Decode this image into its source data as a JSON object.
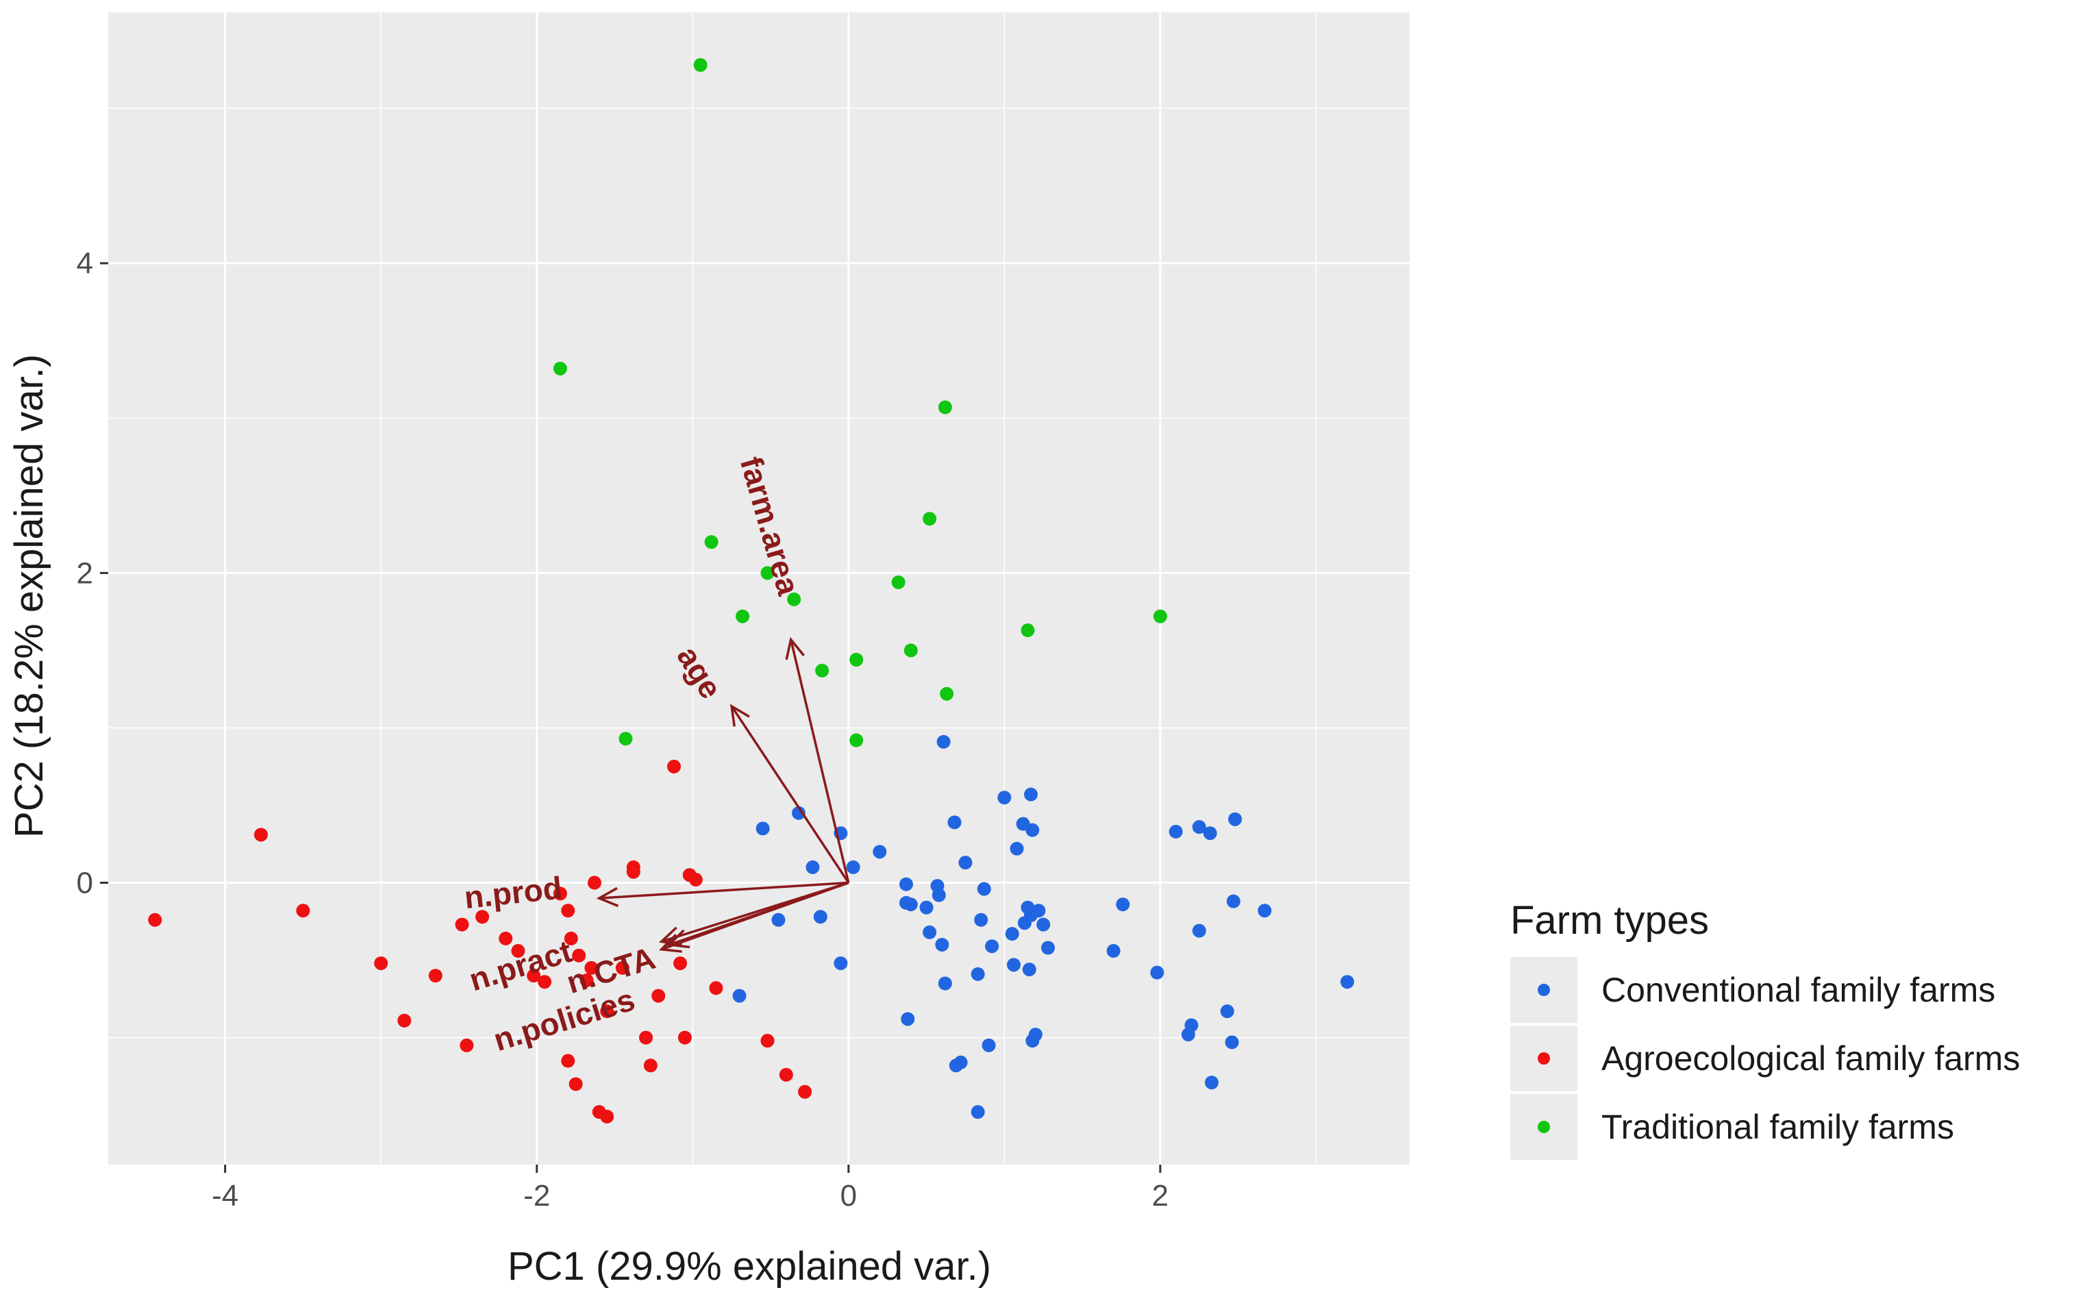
{
  "chart_data": {
    "type": "scatter",
    "xlabel": "PC1 (29.9% explained var.)",
    "ylabel": "PC2 (18.2% explained var.)",
    "xlim": [
      -4.75,
      3.6
    ],
    "ylim": [
      -1.82,
      5.62
    ],
    "x_ticks": [
      -4,
      -2,
      0,
      2
    ],
    "y_ticks": [
      0,
      2,
      4
    ],
    "grid": true,
    "legend": {
      "title": "Farm types",
      "position": "right",
      "entries": [
        "Conventional family farms",
        "Agroecological family farms",
        "Traditional family farms"
      ]
    },
    "colors": {
      "Conventional family farms": "#2166e0",
      "Agroecological family farms": "#ee1111",
      "Traditional family farms": "#11c611",
      "vectors": "#8b1a1a",
      "panel": "#ebebeb",
      "grid": "#ffffff"
    },
    "series": [
      {
        "name": "Conventional family farms",
        "points": [
          [
            -0.55,
            0.35
          ],
          [
            -0.32,
            0.45
          ],
          [
            -0.05,
            0.32
          ],
          [
            0.2,
            0.2
          ],
          [
            0.03,
            0.1
          ],
          [
            -0.23,
            0.1
          ],
          [
            -0.45,
            -0.24
          ],
          [
            -0.18,
            -0.22
          ],
          [
            -0.05,
            -0.52
          ],
          [
            -0.7,
            -0.73
          ],
          [
            0.37,
            -0.01
          ],
          [
            0.37,
            -0.13
          ],
          [
            0.4,
            -0.14
          ],
          [
            0.57,
            -0.02
          ],
          [
            0.58,
            -0.08
          ],
          [
            0.5,
            -0.16
          ],
          [
            0.52,
            -0.32
          ],
          [
            0.6,
            -0.4
          ],
          [
            0.38,
            -0.88
          ],
          [
            0.61,
            0.91
          ],
          [
            0.68,
            0.39
          ],
          [
            0.75,
            0.13
          ],
          [
            0.62,
            -0.65
          ],
          [
            0.83,
            -0.59
          ],
          [
            0.87,
            -0.04
          ],
          [
            0.85,
            -0.24
          ],
          [
            0.92,
            -0.41
          ],
          [
            1.0,
            0.55
          ],
          [
            1.05,
            -0.33
          ],
          [
            1.06,
            -0.53
          ],
          [
            1.08,
            0.22
          ],
          [
            1.12,
            0.38
          ],
          [
            1.15,
            -0.16
          ],
          [
            1.18,
            0.34
          ],
          [
            1.17,
            -0.21
          ],
          [
            1.13,
            -0.26
          ],
          [
            1.17,
            0.57
          ],
          [
            1.22,
            -0.18
          ],
          [
            1.25,
            -0.27
          ],
          [
            1.28,
            -0.42
          ],
          [
            1.16,
            -0.56
          ],
          [
            1.2,
            -0.98
          ],
          [
            1.18,
            -1.02
          ],
          [
            0.9,
            -1.05
          ],
          [
            0.72,
            -1.16
          ],
          [
            0.69,
            -1.18
          ],
          [
            0.83,
            -1.48
          ],
          [
            1.7,
            -0.44
          ],
          [
            1.76,
            -0.14
          ],
          [
            1.98,
            -0.58
          ],
          [
            2.1,
            0.33
          ],
          [
            2.25,
            0.36
          ],
          [
            2.32,
            0.32
          ],
          [
            2.48,
            0.41
          ],
          [
            2.47,
            -0.12
          ],
          [
            2.25,
            -0.31
          ],
          [
            2.2,
            -0.92
          ],
          [
            2.18,
            -0.98
          ],
          [
            2.43,
            -0.83
          ],
          [
            2.46,
            -1.03
          ],
          [
            2.33,
            -1.29
          ],
          [
            2.67,
            -0.18
          ],
          [
            3.2,
            -0.64
          ]
        ]
      },
      {
        "name": "Agroecological family farms",
        "points": [
          [
            -4.45,
            -0.24
          ],
          [
            -3.77,
            0.31
          ],
          [
            -3.5,
            -0.18
          ],
          [
            -3.0,
            -0.52
          ],
          [
            -2.85,
            -0.89
          ],
          [
            -2.65,
            -0.6
          ],
          [
            -2.48,
            -0.27
          ],
          [
            -2.45,
            -1.05
          ],
          [
            -2.35,
            -0.22
          ],
          [
            -2.2,
            -0.36
          ],
          [
            -2.12,
            -0.44
          ],
          [
            -2.02,
            -0.6
          ],
          [
            -1.95,
            -0.64
          ],
          [
            -1.8,
            -0.18
          ],
          [
            -1.85,
            -0.07
          ],
          [
            -1.78,
            -0.36
          ],
          [
            -1.73,
            -0.47
          ],
          [
            -1.63,
            0.0
          ],
          [
            -1.65,
            -0.55
          ],
          [
            -1.68,
            -0.63
          ],
          [
            -1.55,
            -0.83
          ],
          [
            -1.45,
            -0.55
          ],
          [
            -1.38,
            0.1
          ],
          [
            -1.38,
            0.07
          ],
          [
            -1.22,
            -0.73
          ],
          [
            -1.12,
            0.75
          ],
          [
            -1.08,
            -0.52
          ],
          [
            -1.02,
            0.05
          ],
          [
            -0.98,
            0.02
          ],
          [
            -0.85,
            -0.68
          ],
          [
            -1.05,
            -1.0
          ],
          [
            -1.3,
            -1.0
          ],
          [
            -1.8,
            -1.15
          ],
          [
            -1.75,
            -1.3
          ],
          [
            -1.27,
            -1.18
          ],
          [
            -1.6,
            -1.48
          ],
          [
            -1.55,
            -1.51
          ],
          [
            -0.52,
            -1.02
          ],
          [
            -0.4,
            -1.24
          ],
          [
            -0.28,
            -1.35
          ]
        ]
      },
      {
        "name": "Traditional family farms",
        "points": [
          [
            -0.95,
            5.28
          ],
          [
            -1.85,
            3.32
          ],
          [
            0.62,
            3.07
          ],
          [
            0.52,
            2.35
          ],
          [
            -0.88,
            2.2
          ],
          [
            -0.52,
            2.0
          ],
          [
            -0.35,
            1.83
          ],
          [
            0.32,
            1.94
          ],
          [
            -0.68,
            1.72
          ],
          [
            0.05,
            1.44
          ],
          [
            -0.17,
            1.37
          ],
          [
            0.4,
            1.5
          ],
          [
            1.15,
            1.63
          ],
          [
            2.0,
            1.72
          ],
          [
            0.63,
            1.22
          ],
          [
            -1.43,
            0.93
          ],
          [
            0.05,
            0.92
          ]
        ]
      }
    ],
    "vectors": [
      {
        "name": "farm.area",
        "end": [
          -0.37,
          1.57
        ],
        "label_at": [
          -0.52,
          2.3
        ],
        "label_angle": 74
      },
      {
        "name": "age",
        "end": [
          -0.75,
          1.14
        ],
        "label_at": [
          -0.97,
          1.35
        ],
        "label_angle": 58
      },
      {
        "name": "n.prod",
        "end": [
          -1.6,
          -0.1
        ],
        "label_at": [
          -2.15,
          -0.08
        ],
        "label_angle": -6
      },
      {
        "name": "n.pract",
        "end": [
          -1.2,
          -0.38
        ],
        "label_at": [
          -2.1,
          -0.55
        ],
        "label_angle": -17
      },
      {
        "name": "n.CTA",
        "end": [
          -1.15,
          -0.4
        ],
        "label_at": [
          -1.52,
          -0.58
        ],
        "label_angle": -17
      },
      {
        "name": "n.policies",
        "end": [
          -1.2,
          -0.43
        ],
        "label_at": [
          -1.82,
          -0.9
        ],
        "label_angle": -17
      }
    ]
  }
}
